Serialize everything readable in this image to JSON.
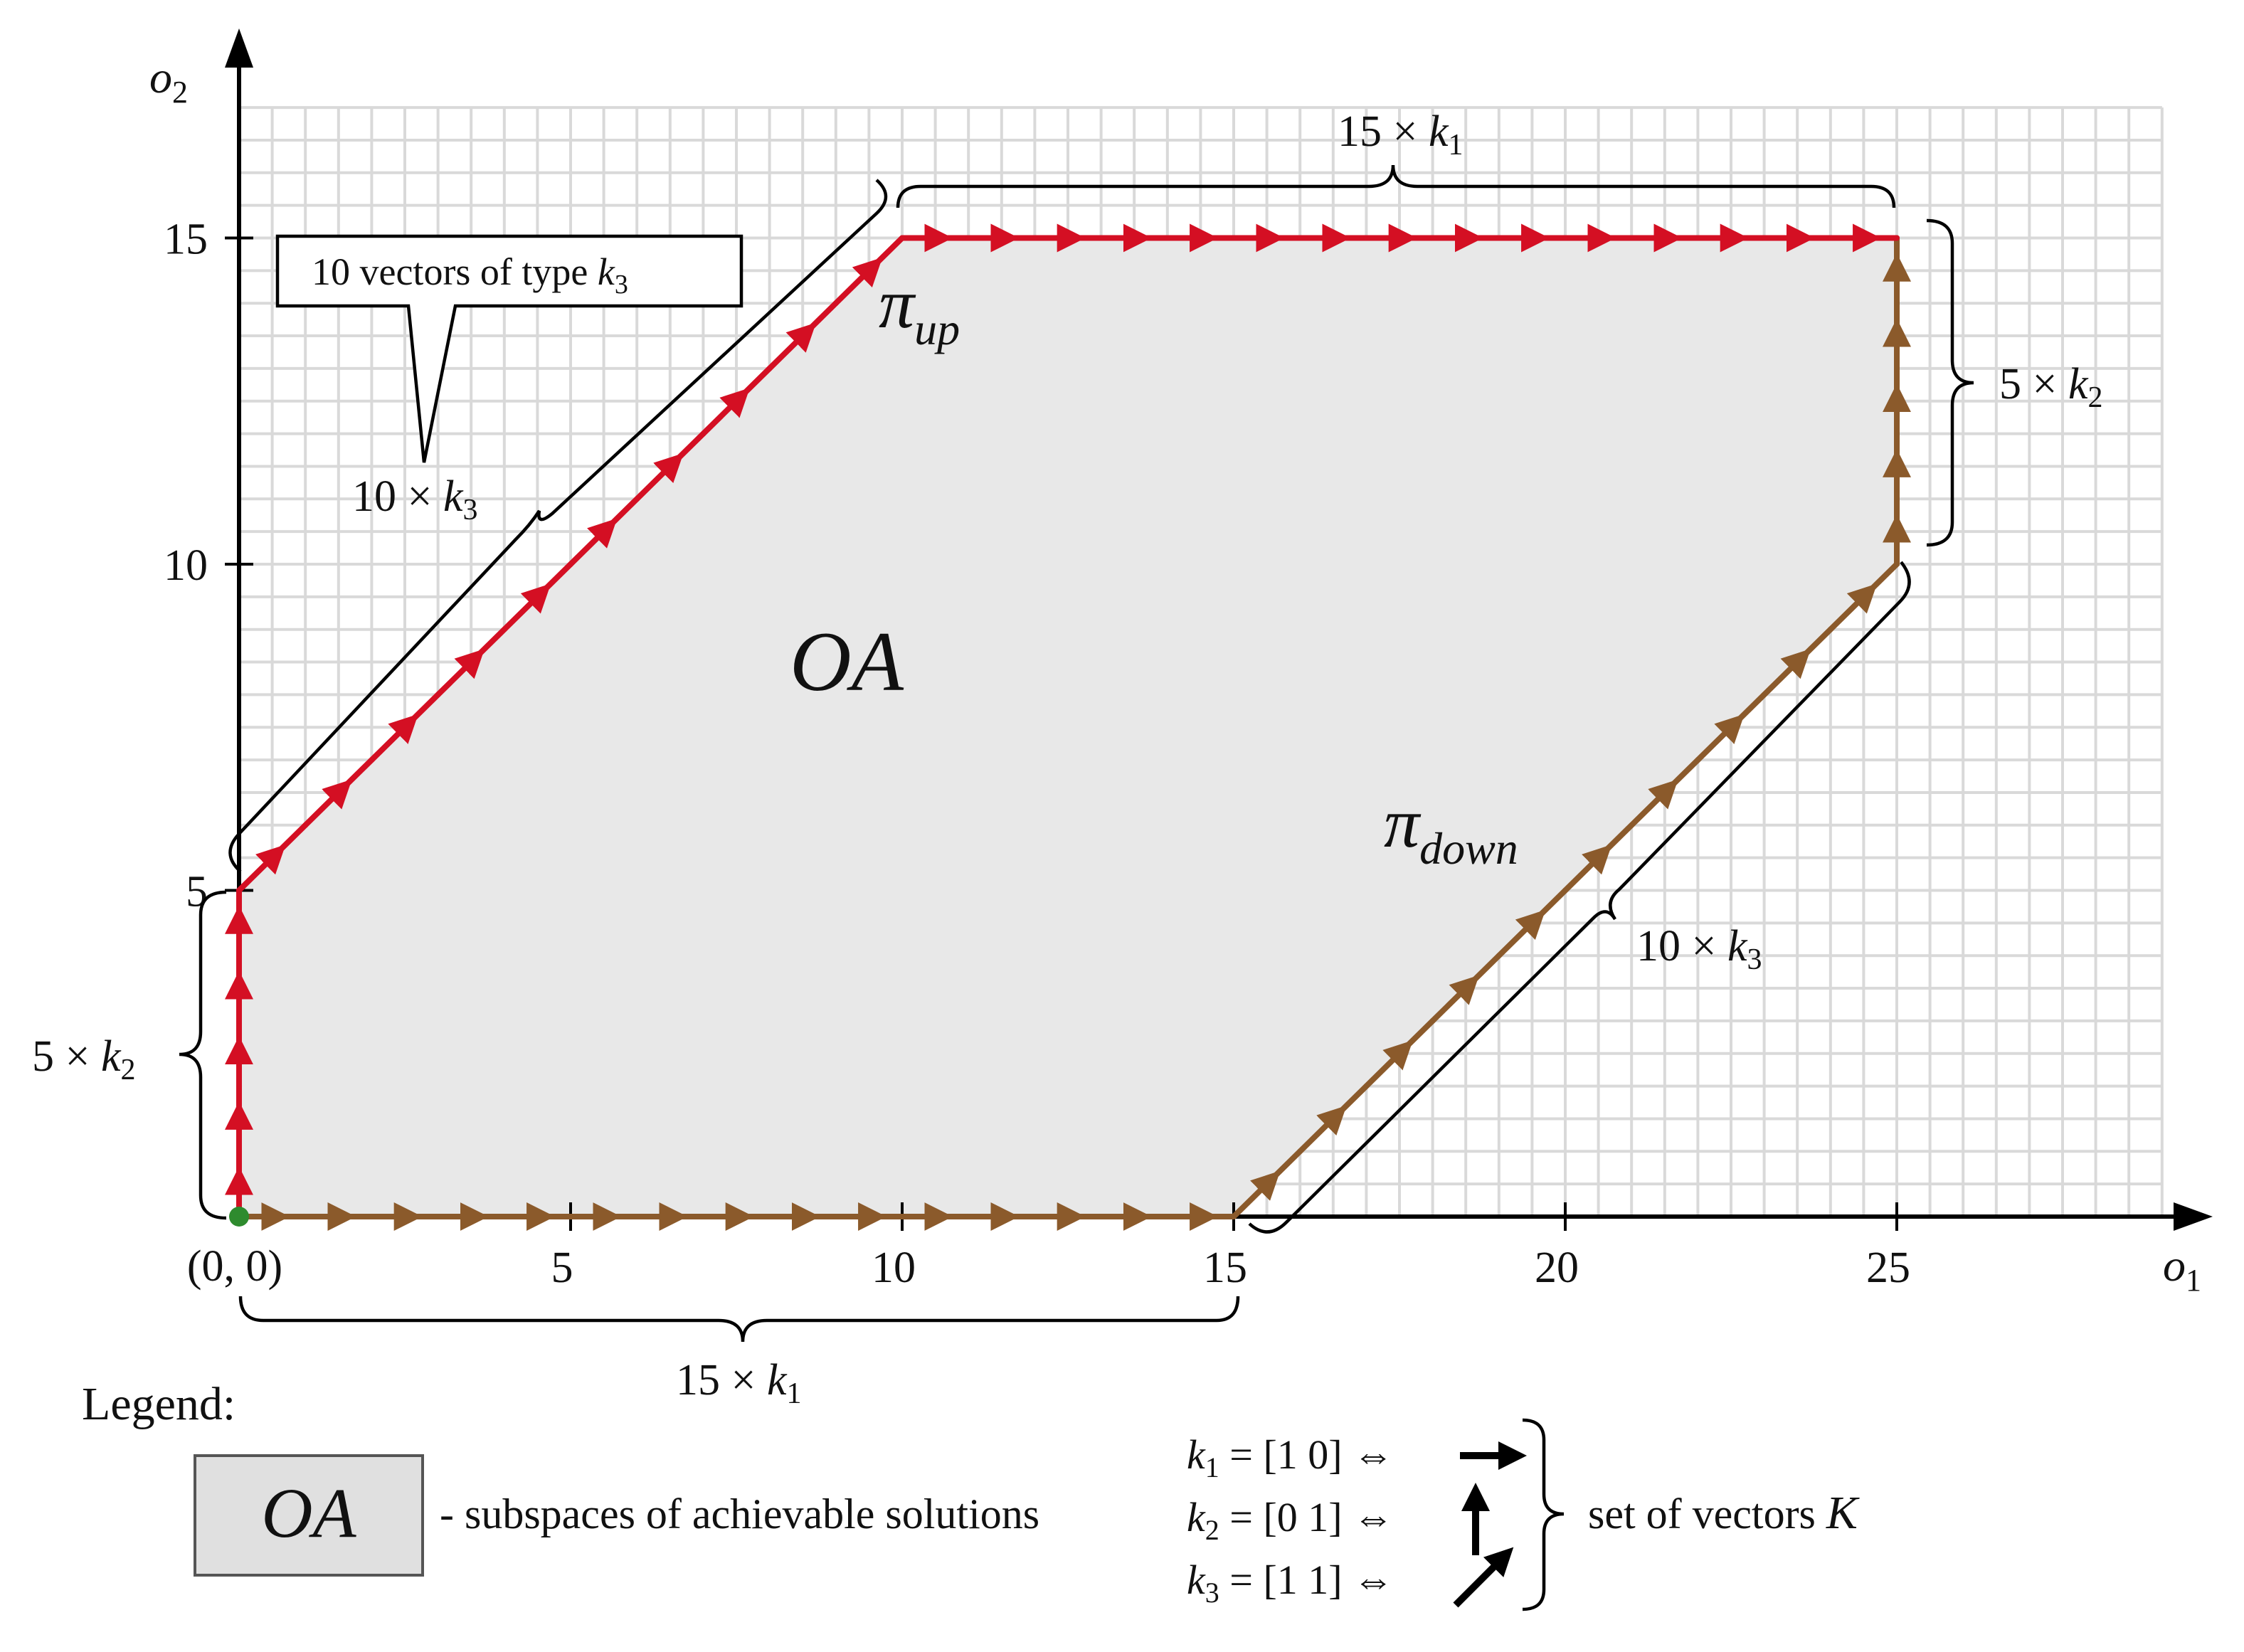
{
  "axes": {
    "x_label": "o",
    "x_label_sub": "1",
    "y_label": "o",
    "y_label_sub": "2",
    "x_ticks": [
      "5",
      "10",
      "15",
      "20",
      "25"
    ],
    "y_ticks": [
      "5",
      "10",
      "15"
    ],
    "origin_label": "(0, 0)",
    "x_range": [
      0,
      29
    ],
    "y_range": [
      0,
      17
    ]
  },
  "region": {
    "label": "OA",
    "fill": "#e8e8e8",
    "vertices": [
      [
        0,
        0
      ],
      [
        0,
        5
      ],
      [
        10,
        15
      ],
      [
        25,
        15
      ],
      [
        25,
        10
      ],
      [
        15,
        0
      ]
    ]
  },
  "paths": {
    "up": {
      "label": "π",
      "label_sub": "up",
      "color": "#d40f23",
      "points": [
        [
          0,
          0
        ],
        [
          0,
          5
        ],
        [
          10,
          15
        ],
        [
          25,
          15
        ]
      ]
    },
    "down": {
      "label": "π",
      "label_sub": "down",
      "color": "#8b5a2b",
      "points": [
        [
          0,
          0
        ],
        [
          15,
          0
        ],
        [
          25,
          10
        ],
        [
          25,
          15
        ]
      ]
    }
  },
  "origin_color": "#2e8b2e",
  "annotations": {
    "left_vertical": {
      "count": "5",
      "times": "×",
      "vec": "k",
      "sub": "2"
    },
    "up_diagonal": {
      "count": "10",
      "times": "×",
      "vec": "k",
      "sub": "3"
    },
    "top_horizontal": {
      "count": "15",
      "times": "×",
      "vec": "k",
      "sub": "1"
    },
    "right_vertical": {
      "count": "5",
      "times": "×",
      "vec": "k",
      "sub": "2"
    },
    "down_diagonal": {
      "count": "10",
      "times": "×",
      "vec": "k",
      "sub": "3"
    },
    "bottom_horizontal": {
      "count": "15",
      "times": "×",
      "vec": "k",
      "sub": "1"
    }
  },
  "callout": {
    "text": "10 vectors of type ",
    "vec": "k",
    "sub": "3"
  },
  "legend": {
    "title": "Legend:",
    "oa_label": "OA",
    "oa_desc": "- subspaces of achievable solutions",
    "vectors": [
      {
        "vec": "k",
        "sub": "1",
        "value": "= [1  0]",
        "equiv": "⇔",
        "arrow": "right-arrow-icon"
      },
      {
        "vec": "k",
        "sub": "2",
        "value": "= [0  1]",
        "equiv": "⇔",
        "arrow": "up-arrow-icon"
      },
      {
        "vec": "k",
        "sub": "3",
        "value": "= [1  1]",
        "equiv": "⇔",
        "arrow": "diagonal-arrow-icon"
      }
    ],
    "set_label": "set of vectors ",
    "set_symbol": "K"
  }
}
